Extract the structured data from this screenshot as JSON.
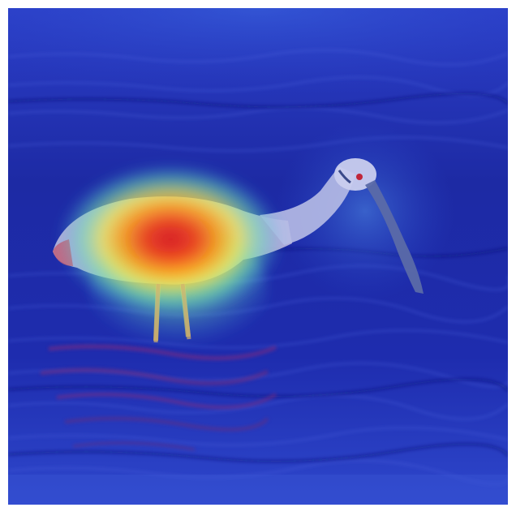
{
  "figure": {
    "kind": "attention-heatmap-overlay",
    "subject_icon": "spoonbill-bird-icon",
    "colors": {
      "water_deep": "#12207a",
      "water_mid": "#2231b8",
      "water_light": "#3a55d6",
      "ripple": "#5c73e8",
      "bird_body": "#c8cde8",
      "bird_bill": "#5b6aa8",
      "bird_eye": "#c0263a",
      "heat_hot": "#e0201a",
      "heat_warm": "#ff8a00",
      "heat_mid": "#f6e84a",
      "heat_cool": "#6ee8a8",
      "heat_cold": "#3fb7e8",
      "reflection": "#7a2c7a"
    }
  }
}
